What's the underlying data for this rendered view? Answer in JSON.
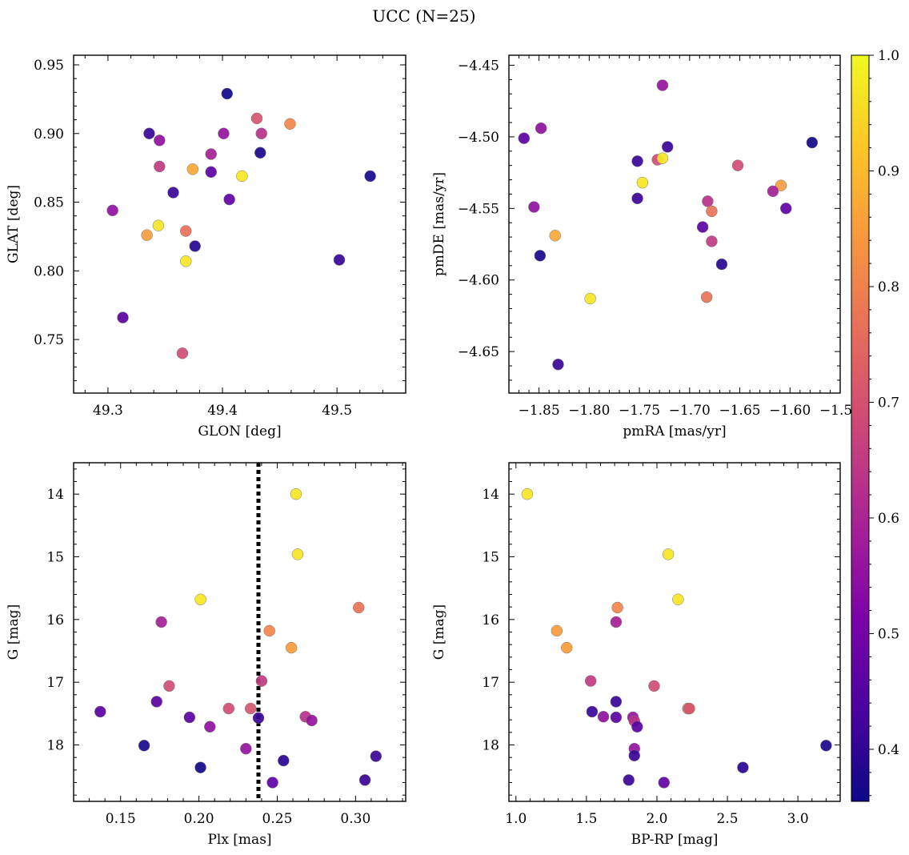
{
  "figure": {
    "suptitle": "UCC (N=25)"
  },
  "colorbar": {
    "colormap": "plasma",
    "range": [
      0.355,
      1.0
    ],
    "ticks": [
      0.4,
      0.5,
      0.6,
      0.7,
      0.8,
      0.9,
      1.0
    ],
    "tick_labels": [
      "0.4",
      "0.5",
      "0.6",
      "0.7",
      "0.8",
      "0.9",
      "1.0"
    ]
  },
  "chart_data": [
    {
      "type": "scatter",
      "id": "glon-glat",
      "xlabel": "GLON [deg]",
      "ylabel": "GLAT [deg]",
      "xlim": [
        49.27,
        49.56
      ],
      "ylim": [
        0.711,
        0.957
      ],
      "invert_y": false,
      "xticks": [
        49.3,
        49.4,
        49.5
      ],
      "xtick_labels": [
        "49.3",
        "49.4",
        "49.5"
      ],
      "yticks": [
        0.75,
        0.8,
        0.85,
        0.9,
        0.95
      ],
      "ytick_labels": [
        "0.75",
        "0.80",
        "0.85",
        "0.90",
        "0.95"
      ],
      "points": [
        {
          "x": 49.404,
          "y": 0.929,
          "c": 0.36
        },
        {
          "x": 49.336,
          "y": 0.9,
          "c": 0.41
        },
        {
          "x": 49.345,
          "y": 0.895,
          "c": 0.55
        },
        {
          "x": 49.401,
          "y": 0.9,
          "c": 0.56
        },
        {
          "x": 49.43,
          "y": 0.911,
          "c": 0.71
        },
        {
          "x": 49.434,
          "y": 0.9,
          "c": 0.63
        },
        {
          "x": 49.459,
          "y": 0.907,
          "c": 0.81
        },
        {
          "x": 49.433,
          "y": 0.886,
          "c": 0.37
        },
        {
          "x": 49.39,
          "y": 0.885,
          "c": 0.59
        },
        {
          "x": 49.345,
          "y": 0.876,
          "c": 0.65
        },
        {
          "x": 49.374,
          "y": 0.874,
          "c": 0.87
        },
        {
          "x": 49.39,
          "y": 0.872,
          "c": 0.46
        },
        {
          "x": 49.417,
          "y": 0.869,
          "c": 0.97
        },
        {
          "x": 49.529,
          "y": 0.869,
          "c": 0.37
        },
        {
          "x": 49.357,
          "y": 0.857,
          "c": 0.41
        },
        {
          "x": 49.406,
          "y": 0.852,
          "c": 0.47
        },
        {
          "x": 49.304,
          "y": 0.844,
          "c": 0.55
        },
        {
          "x": 49.344,
          "y": 0.833,
          "c": 0.97
        },
        {
          "x": 49.368,
          "y": 0.829,
          "c": 0.77
        },
        {
          "x": 49.334,
          "y": 0.826,
          "c": 0.85
        },
        {
          "x": 49.376,
          "y": 0.818,
          "c": 0.39
        },
        {
          "x": 49.368,
          "y": 0.807,
          "c": 0.97
        },
        {
          "x": 49.502,
          "y": 0.808,
          "c": 0.41
        },
        {
          "x": 49.313,
          "y": 0.766,
          "c": 0.46
        },
        {
          "x": 49.365,
          "y": 0.74,
          "c": 0.69
        }
      ]
    },
    {
      "type": "scatter",
      "id": "pmra-pmde",
      "xlabel": "pmRA [mas/yr]",
      "ylabel": "pmDE [mas/yr]",
      "xlim": [
        -1.88,
        -1.55
      ],
      "ylim": [
        -4.679,
        -4.443
      ],
      "invert_y": false,
      "xticks": [
        -1.85,
        -1.8,
        -1.75,
        -1.7,
        -1.65,
        -1.6,
        -1.55
      ],
      "xtick_labels": [
        "−1.85",
        "−1.80",
        "−1.75",
        "−1.70",
        "−1.65",
        "−1.60",
        "−1.55"
      ],
      "yticks": [
        -4.65,
        -4.6,
        -4.55,
        -4.5,
        -4.45
      ],
      "ytick_labels": [
        "−4.65",
        "−4.60",
        "−4.55",
        "−4.50",
        "−4.45"
      ],
      "points": [
        {
          "x": -1.727,
          "y": -4.464,
          "c": 0.56
        },
        {
          "x": -1.848,
          "y": -4.494,
          "c": 0.55
        },
        {
          "x": -1.865,
          "y": -4.501,
          "c": 0.46
        },
        {
          "x": -1.578,
          "y": -4.504,
          "c": 0.36
        },
        {
          "x": -1.722,
          "y": -4.507,
          "c": 0.41
        },
        {
          "x": -1.752,
          "y": -4.517,
          "c": 0.41
        },
        {
          "x": -1.732,
          "y": -4.516,
          "c": 0.69
        },
        {
          "x": -1.727,
          "y": -4.515,
          "c": 0.97
        },
        {
          "x": -1.652,
          "y": -4.52,
          "c": 0.69
        },
        {
          "x": -1.747,
          "y": -4.532,
          "c": 0.97
        },
        {
          "x": -1.609,
          "y": -4.534,
          "c": 0.85
        },
        {
          "x": -1.617,
          "y": -4.538,
          "c": 0.59
        },
        {
          "x": -1.752,
          "y": -4.543,
          "c": 0.41
        },
        {
          "x": -1.682,
          "y": -4.545,
          "c": 0.63
        },
        {
          "x": -1.855,
          "y": -4.549,
          "c": 0.55
        },
        {
          "x": -1.604,
          "y": -4.55,
          "c": 0.47
        },
        {
          "x": -1.678,
          "y": -4.552,
          "c": 0.77
        },
        {
          "x": -1.687,
          "y": -4.563,
          "c": 0.46
        },
        {
          "x": -1.834,
          "y": -4.569,
          "c": 0.87
        },
        {
          "x": -1.678,
          "y": -4.573,
          "c": 0.65
        },
        {
          "x": -1.849,
          "y": -4.583,
          "c": 0.37
        },
        {
          "x": -1.668,
          "y": -4.589,
          "c": 0.39
        },
        {
          "x": -1.683,
          "y": -4.612,
          "c": 0.77
        },
        {
          "x": -1.799,
          "y": -4.613,
          "c": 0.97
        },
        {
          "x": -1.831,
          "y": -4.659,
          "c": 0.41
        }
      ]
    },
    {
      "type": "scatter",
      "id": "plx-g",
      "xlabel": "Plx [mas]",
      "ylabel": "G [mag]",
      "xlim": [
        0.12,
        0.332
      ],
      "ylim": [
        18.9,
        13.5
      ],
      "invert_y": true,
      "xticks": [
        0.15,
        0.2,
        0.25,
        0.3
      ],
      "xtick_labels": [
        "0.15",
        "0.20",
        "0.25",
        "0.30"
      ],
      "yticks": [
        14,
        15,
        16,
        17,
        18
      ],
      "ytick_labels": [
        "14",
        "15",
        "16",
        "17",
        "18"
      ],
      "vline": {
        "x": 0.238,
        "style": "dotted"
      },
      "points": [
        {
          "x": 0.262,
          "y": 14.0,
          "c": 0.97
        },
        {
          "x": 0.263,
          "y": 14.96,
          "c": 0.97
        },
        {
          "x": 0.201,
          "y": 15.68,
          "c": 0.97
        },
        {
          "x": 0.302,
          "y": 15.81,
          "c": 0.77
        },
        {
          "x": 0.176,
          "y": 16.04,
          "c": 0.59
        },
        {
          "x": 0.245,
          "y": 16.18,
          "c": 0.81
        },
        {
          "x": 0.259,
          "y": 16.45,
          "c": 0.85
        },
        {
          "x": 0.24,
          "y": 16.98,
          "c": 0.65
        },
        {
          "x": 0.181,
          "y": 17.06,
          "c": 0.69
        },
        {
          "x": 0.173,
          "y": 17.31,
          "c": 0.46
        },
        {
          "x": 0.219,
          "y": 17.42,
          "c": 0.69
        },
        {
          "x": 0.233,
          "y": 17.42,
          "c": 0.71
        },
        {
          "x": 0.137,
          "y": 17.47,
          "c": 0.46
        },
        {
          "x": 0.194,
          "y": 17.56,
          "c": 0.46
        },
        {
          "x": 0.268,
          "y": 17.55,
          "c": 0.63
        },
        {
          "x": 0.238,
          "y": 17.57,
          "c": 0.41
        },
        {
          "x": 0.272,
          "y": 17.61,
          "c": 0.56
        },
        {
          "x": 0.207,
          "y": 17.71,
          "c": 0.55
        },
        {
          "x": 0.165,
          "y": 18.01,
          "c": 0.37
        },
        {
          "x": 0.23,
          "y": 18.06,
          "c": 0.56
        },
        {
          "x": 0.313,
          "y": 18.18,
          "c": 0.41
        },
        {
          "x": 0.254,
          "y": 18.25,
          "c": 0.39
        },
        {
          "x": 0.201,
          "y": 18.36,
          "c": 0.36
        },
        {
          "x": 0.306,
          "y": 18.56,
          "c": 0.41
        },
        {
          "x": 0.247,
          "y": 18.6,
          "c": 0.47
        }
      ]
    },
    {
      "type": "scatter",
      "id": "bprp-g",
      "xlabel": "BP-RP [mag]",
      "ylabel": "G [mag]",
      "xlim": [
        0.95,
        3.3
      ],
      "ylim": [
        18.9,
        13.5
      ],
      "invert_y": true,
      "xticks": [
        1.0,
        1.5,
        2.0,
        2.5,
        3.0
      ],
      "xtick_labels": [
        "1.0",
        "1.5",
        "2.0",
        "2.5",
        "3.0"
      ],
      "yticks": [
        14,
        15,
        16,
        17,
        18
      ],
      "ytick_labels": [
        "14",
        "15",
        "16",
        "17",
        "18"
      ],
      "points": [
        {
          "x": 1.08,
          "y": 14.0,
          "c": 0.97
        },
        {
          "x": 2.08,
          "y": 14.96,
          "c": 0.97
        },
        {
          "x": 2.15,
          "y": 15.68,
          "c": 0.97
        },
        {
          "x": 1.72,
          "y": 15.81,
          "c": 0.81
        },
        {
          "x": 1.71,
          "y": 16.04,
          "c": 0.59
        },
        {
          "x": 1.29,
          "y": 16.18,
          "c": 0.85
        },
        {
          "x": 1.36,
          "y": 16.45,
          "c": 0.85
        },
        {
          "x": 1.53,
          "y": 16.98,
          "c": 0.65
        },
        {
          "x": 1.98,
          "y": 17.06,
          "c": 0.69
        },
        {
          "x": 1.71,
          "y": 17.31,
          "c": 0.41
        },
        {
          "x": 2.22,
          "y": 17.42,
          "c": 0.77
        },
        {
          "x": 2.23,
          "y": 17.42,
          "c": 0.71
        },
        {
          "x": 1.54,
          "y": 17.47,
          "c": 0.41
        },
        {
          "x": 1.62,
          "y": 17.55,
          "c": 0.55
        },
        {
          "x": 1.71,
          "y": 17.56,
          "c": 0.46
        },
        {
          "x": 1.83,
          "y": 17.56,
          "c": 0.56
        },
        {
          "x": 1.84,
          "y": 17.62,
          "c": 0.63
        },
        {
          "x": 1.86,
          "y": 17.71,
          "c": 0.46
        },
        {
          "x": 3.2,
          "y": 18.01,
          "c": 0.37
        },
        {
          "x": 1.84,
          "y": 18.06,
          "c": 0.56
        },
        {
          "x": 1.84,
          "y": 18.17,
          "c": 0.41
        },
        {
          "x": 2.61,
          "y": 18.36,
          "c": 0.39
        },
        {
          "x": 1.8,
          "y": 18.56,
          "c": 0.41
        },
        {
          "x": 2.05,
          "y": 18.6,
          "c": 0.47
        }
      ]
    }
  ]
}
